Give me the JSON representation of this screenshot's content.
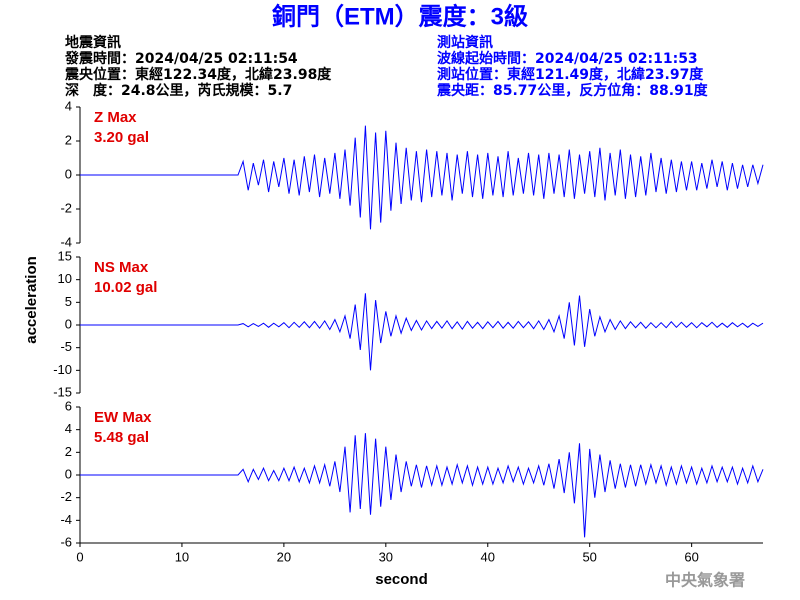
{
  "header": {
    "title": "銅門（ETM）震度：3級",
    "left": [
      "地震資訊",
      "發震時間：2024/04/25 02:11:54",
      "震央位置：東經122.34度，北緯23.98度",
      "深　度：24.8公里，芮氏規模：5.7"
    ],
    "right": [
      "測站資訊",
      "波線起始時間：2024/04/25 02:11:53",
      "測站位置：東經121.49度，北緯23.97度",
      "震央距：85.77公里，反方位角：88.91度"
    ],
    "watermark": "中央氣象署"
  },
  "chart_data": [
    {
      "type": "line",
      "annotations": [
        "Z Max",
        "3.20 gal"
      ],
      "xlim": [
        0,
        67
      ],
      "ylim": [
        -4,
        4
      ],
      "yticks": [
        -4,
        -2,
        0,
        2,
        4
      ],
      "x": [
        0,
        5,
        10,
        15.5,
        16,
        16.5,
        17,
        17.5,
        18,
        18.5,
        19,
        19.5,
        20,
        20.5,
        21,
        21.5,
        22,
        22.5,
        23,
        23.5,
        24,
        24.5,
        25,
        25.5,
        26,
        26.5,
        27,
        27.5,
        28,
        28.5,
        29,
        29.5,
        30,
        30.5,
        31,
        31.5,
        32,
        32.5,
        33,
        33.5,
        34,
        34.5,
        35,
        35.5,
        36,
        36.5,
        37,
        37.5,
        38,
        38.5,
        39,
        39.5,
        40,
        40.5,
        41,
        41.5,
        42,
        42.5,
        43,
        43.5,
        44,
        44.5,
        45,
        45.5,
        46,
        46.5,
        47,
        47.5,
        48,
        48.5,
        49,
        49.5,
        50,
        50.5,
        51,
        51.5,
        52,
        52.5,
        53,
        53.5,
        54,
        54.5,
        55,
        55.5,
        56,
        56.5,
        57,
        57.5,
        58,
        58.5,
        59,
        59.5,
        60,
        60.5,
        61,
        61.5,
        62,
        62.5,
        63,
        63.5,
        64,
        64.5,
        65,
        65.5,
        66,
        66.5,
        67
      ],
      "series": [
        {
          "color": "#0000ff",
          "values": [
            0,
            0,
            0,
            0,
            0.8,
            -0.9,
            0.7,
            -0.6,
            0.9,
            -1.0,
            0.8,
            -0.7,
            1.0,
            -1.1,
            0.9,
            -1.2,
            1.1,
            -1.0,
            1.2,
            -1.3,
            1.0,
            -1.1,
            1.3,
            -1.4,
            1.5,
            -1.8,
            2.2,
            -2.5,
            2.9,
            -3.2,
            2.5,
            -2.8,
            2.6,
            -2.1,
            1.9,
            -1.7,
            1.6,
            -1.5,
            1.4,
            -1.6,
            1.5,
            -1.3,
            1.4,
            -1.2,
            1.3,
            -1.5,
            1.2,
            -1.1,
            1.4,
            -1.3,
            1.2,
            -1.4,
            1.3,
            -1.2,
            1.1,
            -1.3,
            1.4,
            -1.2,
            1.0,
            -1.1,
            1.3,
            -1.2,
            1.2,
            -1.4,
            1.3,
            -1.1,
            1.2,
            -1.3,
            1.5,
            -1.4,
            1.2,
            -1.1,
            1.4,
            -1.3,
            1.6,
            -1.5,
            1.3,
            -1.2,
            1.5,
            -1.4,
            1.2,
            -1.3,
            1.1,
            -1.2,
            1.3,
            -1.0,
            1.0,
            -1.1,
            0.9,
            -1.0,
            0.8,
            -0.9,
            0.8,
            -0.9,
            0.7,
            -0.8,
            0.9,
            -0.7,
            0.8,
            -0.9,
            0.7,
            -0.8,
            0.6,
            -0.7,
            0.6,
            -0.5,
            0.6
          ]
        }
      ]
    },
    {
      "type": "line",
      "annotations": [
        "NS Max",
        "10.02 gal"
      ],
      "ylabel": "acceleration",
      "xlim": [
        0,
        67
      ],
      "ylim": [
        -15,
        15
      ],
      "yticks": [
        -15,
        -10,
        -5,
        0,
        5,
        10,
        15
      ],
      "x": [
        0,
        5,
        10,
        15.5,
        16,
        16.5,
        17,
        17.5,
        18,
        18.5,
        19,
        19.5,
        20,
        20.5,
        21,
        21.5,
        22,
        22.5,
        23,
        23.5,
        24,
        24.5,
        25,
        25.5,
        26,
        26.5,
        27,
        27.5,
        28,
        28.5,
        29,
        29.5,
        30,
        30.5,
        31,
        31.5,
        32,
        32.5,
        33,
        33.5,
        34,
        34.5,
        35,
        35.5,
        36,
        36.5,
        37,
        37.5,
        38,
        38.5,
        39,
        39.5,
        40,
        40.5,
        41,
        41.5,
        42,
        42.5,
        43,
        43.5,
        44,
        44.5,
        45,
        45.5,
        46,
        46.5,
        47,
        47.5,
        48,
        48.5,
        49,
        49.5,
        50,
        50.5,
        51,
        51.5,
        52,
        52.5,
        53,
        53.5,
        54,
        54.5,
        55,
        55.5,
        56,
        56.5,
        57,
        57.5,
        58,
        58.5,
        59,
        59.5,
        60,
        60.5,
        61,
        61.5,
        62,
        62.5,
        63,
        63.5,
        64,
        64.5,
        65,
        65.5,
        66,
        66.5,
        67
      ],
      "series": [
        {
          "color": "#0000ff",
          "values": [
            0,
            0,
            0,
            0,
            0.3,
            -0.4,
            0.3,
            -0.3,
            0.4,
            -0.5,
            0.4,
            -0.4,
            0.5,
            -0.6,
            0.6,
            -0.5,
            0.7,
            -0.6,
            0.8,
            -0.7,
            0.9,
            -1.0,
            1.2,
            -1.5,
            2.0,
            -3.0,
            4.5,
            -5.5,
            7.0,
            -10.0,
            5.5,
            -4.0,
            3.0,
            -2.5,
            2.0,
            -1.8,
            1.5,
            -1.2,
            1.0,
            -1.1,
            0.9,
            -0.8,
            0.8,
            -0.7,
            0.9,
            -0.8,
            0.7,
            -0.9,
            0.8,
            -0.7,
            0.6,
            -0.8,
            0.7,
            -0.6,
            0.8,
            -0.7,
            0.6,
            -0.7,
            0.8,
            -0.6,
            0.7,
            -0.8,
            0.9,
            -1.0,
            1.2,
            -1.5,
            2.0,
            -3.0,
            5.0,
            -4.5,
            6.5,
            -4.8,
            3.5,
            -2.5,
            1.8,
            -1.5,
            1.2,
            -1.0,
            0.9,
            -0.8,
            0.7,
            -0.6,
            0.6,
            -0.7,
            0.5,
            -0.6,
            0.5,
            -0.6,
            0.7,
            -0.5,
            0.6,
            -0.5,
            0.5,
            -0.6,
            0.5,
            -0.4,
            0.6,
            -0.5,
            0.4,
            -0.5,
            0.5,
            -0.4,
            0.4,
            -0.5,
            0.4,
            -0.3,
            0.4
          ]
        }
      ]
    },
    {
      "type": "line",
      "annotations": [
        "EW Max",
        "5.48 gal"
      ],
      "xlabel": "second",
      "xlim": [
        0,
        67
      ],
      "xticks": [
        0,
        10,
        20,
        30,
        40,
        50,
        60
      ],
      "ylim": [
        -6,
        6
      ],
      "yticks": [
        -6,
        -4,
        -2,
        0,
        2,
        4,
        6
      ],
      "x": [
        0,
        5,
        10,
        15.5,
        16,
        16.5,
        17,
        17.5,
        18,
        18.5,
        19,
        19.5,
        20,
        20.5,
        21,
        21.5,
        22,
        22.5,
        23,
        23.5,
        24,
        24.5,
        25,
        25.5,
        26,
        26.5,
        27,
        27.5,
        28,
        28.5,
        29,
        29.5,
        30,
        30.5,
        31,
        31.5,
        32,
        32.5,
        33,
        33.5,
        34,
        34.5,
        35,
        35.5,
        36,
        36.5,
        37,
        37.5,
        38,
        38.5,
        39,
        39.5,
        40,
        40.5,
        41,
        41.5,
        42,
        42.5,
        43,
        43.5,
        44,
        44.5,
        45,
        45.5,
        46,
        46.5,
        47,
        47.5,
        48,
        48.5,
        49,
        49.5,
        50,
        50.5,
        51,
        51.5,
        52,
        52.5,
        53,
        53.5,
        54,
        54.5,
        55,
        55.5,
        56,
        56.5,
        57,
        57.5,
        58,
        58.5,
        59,
        59.5,
        60,
        60.5,
        61,
        61.5,
        62,
        62.5,
        63,
        63.5,
        64,
        64.5,
        65,
        65.5,
        66,
        66.5,
        67
      ],
      "series": [
        {
          "color": "#0000ff",
          "values": [
            0,
            0,
            0,
            0,
            0.5,
            -0.6,
            0.5,
            -0.4,
            0.6,
            -0.5,
            0.4,
            -0.5,
            0.6,
            -0.5,
            0.7,
            -0.6,
            0.6,
            -0.7,
            0.8,
            -0.7,
            0.9,
            -1.0,
            1.2,
            -1.5,
            2.5,
            -3.3,
            3.5,
            -3.0,
            3.7,
            -3.5,
            3.2,
            -2.8,
            2.5,
            -2.2,
            1.8,
            -1.5,
            1.2,
            -1.0,
            0.9,
            -1.1,
            0.8,
            -0.9,
            0.8,
            -0.9,
            0.7,
            -0.8,
            0.9,
            -0.7,
            0.8,
            -0.9,
            0.7,
            -0.8,
            0.7,
            -0.8,
            0.6,
            -0.7,
            0.8,
            -0.6,
            0.7,
            -0.8,
            0.6,
            -0.7,
            0.8,
            -0.9,
            1.0,
            -1.2,
            1.4,
            -1.6,
            2.0,
            -2.5,
            2.8,
            -5.5,
            2.3,
            -2.0,
            1.8,
            -1.5,
            1.3,
            -1.2,
            1.0,
            -1.1,
            0.9,
            -1.0,
            0.9,
            -0.8,
            0.9,
            -0.7,
            0.8,
            -0.9,
            0.7,
            -0.8,
            0.8,
            -0.7,
            0.7,
            -0.8,
            0.6,
            -0.7,
            0.8,
            -0.6,
            0.7,
            -0.6,
            0.7,
            -0.8,
            0.6,
            -0.7,
            0.8,
            -0.6,
            0.5
          ]
        }
      ]
    }
  ]
}
